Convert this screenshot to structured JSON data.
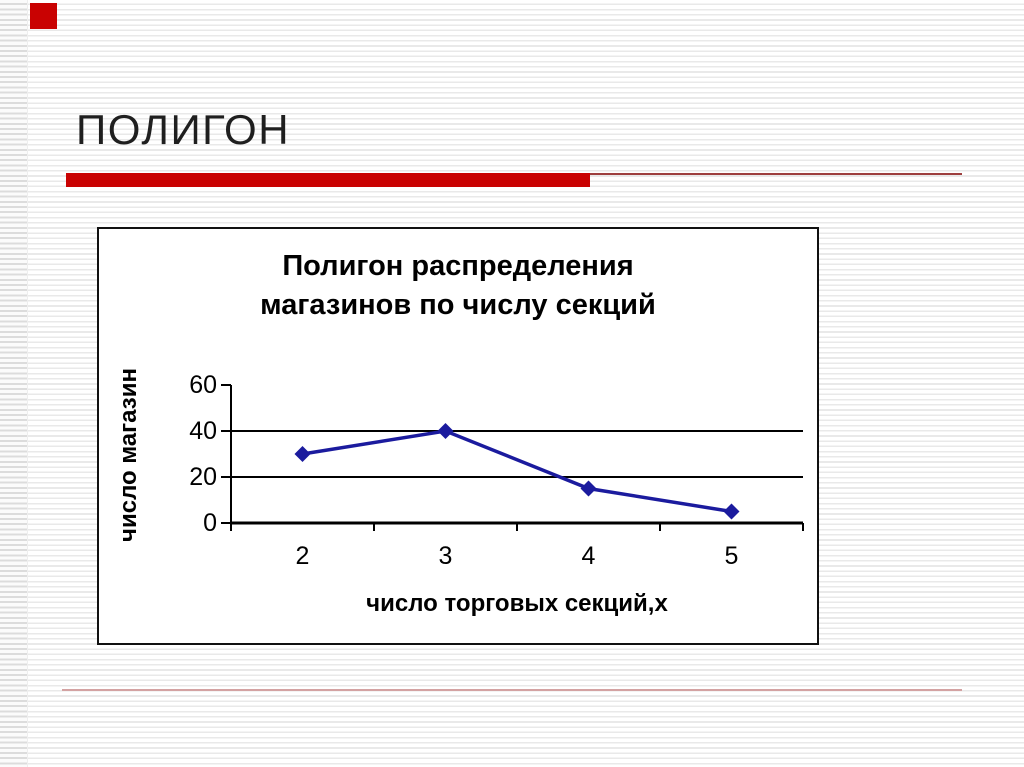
{
  "slide": {
    "title": "ПОЛИГОН",
    "accent_color": "#c90202",
    "underline_thin_color": "#9e3f3f",
    "footer_line_color": "#d3a2a2"
  },
  "chart_data": {
    "type": "line",
    "title_line1": "Полигон распределения",
    "title_line2": "магазинов по числу секций",
    "categories": [
      "2",
      "3",
      "4",
      "5"
    ],
    "values": [
      30,
      40,
      15,
      5
    ],
    "series_name": "",
    "xlabel": "число торговых секций,х",
    "ylabel": "число магазин",
    "ylim": [
      0,
      60
    ],
    "y_ticks": [
      0,
      20,
      40,
      60
    ],
    "gridlines": [
      20,
      40
    ],
    "grid": true,
    "legend": false,
    "line_color": "#1b1b9e",
    "marker": "diamond",
    "axis_color": "#000000"
  }
}
